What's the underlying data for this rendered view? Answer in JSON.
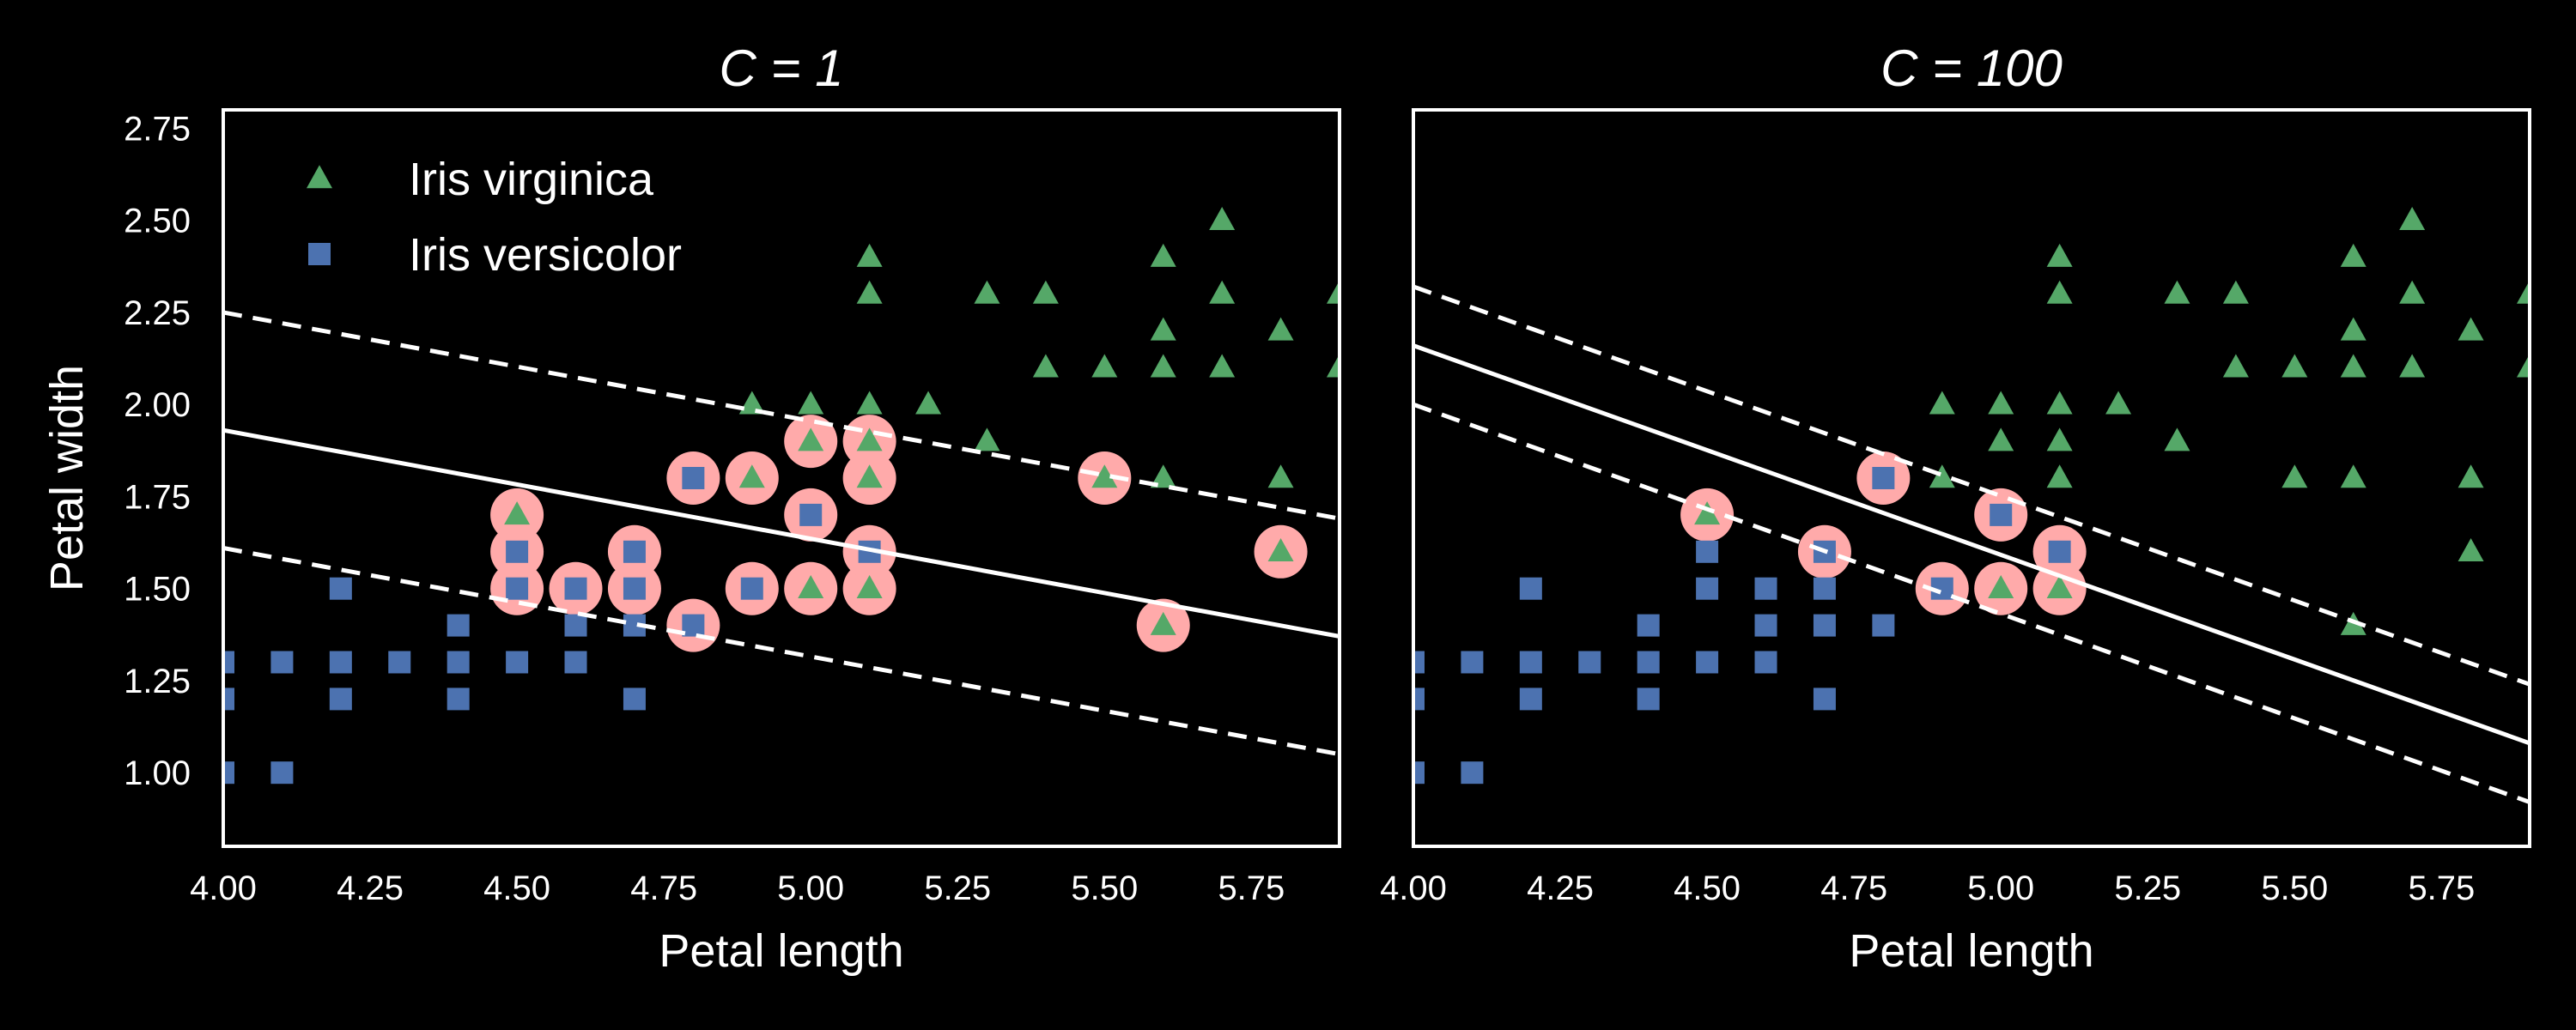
{
  "chart_data": [
    {
      "type": "scatter",
      "title": "C = 1",
      "xlabel": "Petal length",
      "ylabel": "Petal width",
      "xlim": [
        4.0,
        5.9
      ],
      "ylim": [
        0.8,
        2.8
      ],
      "xticks": [
        "4.00",
        "4.25",
        "4.50",
        "4.75",
        "5.00",
        "5.25",
        "5.50",
        "5.75"
      ],
      "yticks": [
        "1.00",
        "1.25",
        "1.50",
        "1.75",
        "2.00",
        "2.25",
        "2.50",
        "2.75"
      ],
      "legend": {
        "position": "top-left",
        "entries": [
          "Iris virginica",
          "Iris versicolor"
        ]
      },
      "grid": false,
      "series": [
        {
          "name": "Iris virginica",
          "marker": "triangle",
          "color": "#55a868",
          "points": [
            [
              4.5,
              1.7
            ],
            [
              4.9,
              1.8
            ],
            [
              4.9,
              2.0
            ],
            [
              5.0,
              1.5
            ],
            [
              5.0,
              1.9
            ],
            [
              5.0,
              2.0
            ],
            [
              5.1,
              1.5
            ],
            [
              5.1,
              1.8
            ],
            [
              5.1,
              1.9
            ],
            [
              5.1,
              2.0
            ],
            [
              5.1,
              2.3
            ],
            [
              5.1,
              2.4
            ],
            [
              5.2,
              2.0
            ],
            [
              5.3,
              1.9
            ],
            [
              5.3,
              2.3
            ],
            [
              5.4,
              2.3
            ],
            [
              5.4,
              2.1
            ],
            [
              5.5,
              1.8
            ],
            [
              5.5,
              2.1
            ],
            [
              5.6,
              1.4
            ],
            [
              5.6,
              1.8
            ],
            [
              5.6,
              2.1
            ],
            [
              5.6,
              2.2
            ],
            [
              5.6,
              2.4
            ],
            [
              5.7,
              2.1
            ],
            [
              5.7,
              2.3
            ],
            [
              5.7,
              2.5
            ],
            [
              5.8,
              1.6
            ],
            [
              5.8,
              1.8
            ],
            [
              5.8,
              2.2
            ],
            [
              5.9,
              2.1
            ],
            [
              5.9,
              2.3
            ]
          ]
        },
        {
          "name": "Iris versicolor",
          "marker": "square",
          "color": "#4c72b0",
          "points": [
            [
              4.0,
              1.0
            ],
            [
              4.0,
              1.2
            ],
            [
              4.0,
              1.3
            ],
            [
              4.1,
              1.0
            ],
            [
              4.1,
              1.3
            ],
            [
              4.2,
              1.2
            ],
            [
              4.2,
              1.3
            ],
            [
              4.2,
              1.5
            ],
            [
              4.3,
              1.3
            ],
            [
              4.4,
              1.2
            ],
            [
              4.4,
              1.3
            ],
            [
              4.4,
              1.4
            ],
            [
              4.5,
              1.3
            ],
            [
              4.5,
              1.5
            ],
            [
              4.5,
              1.6
            ],
            [
              4.6,
              1.3
            ],
            [
              4.6,
              1.4
            ],
            [
              4.6,
              1.5
            ],
            [
              4.7,
              1.2
            ],
            [
              4.7,
              1.4
            ],
            [
              4.7,
              1.5
            ],
            [
              4.7,
              1.6
            ],
            [
              4.8,
              1.4
            ],
            [
              4.8,
              1.8
            ],
            [
              4.9,
              1.5
            ],
            [
              5.0,
              1.7
            ],
            [
              5.1,
              1.6
            ]
          ]
        }
      ],
      "support_vectors": [
        [
          4.5,
          1.5
        ],
        [
          4.5,
          1.6
        ],
        [
          4.5,
          1.7
        ],
        [
          4.6,
          1.5
        ],
        [
          4.7,
          1.5
        ],
        [
          4.7,
          1.6
        ],
        [
          4.8,
          1.4
        ],
        [
          4.8,
          1.8
        ],
        [
          4.9,
          1.5
        ],
        [
          4.9,
          1.8
        ],
        [
          5.0,
          1.5
        ],
        [
          5.0,
          1.7
        ],
        [
          5.0,
          1.9
        ],
        [
          5.1,
          1.5
        ],
        [
          5.1,
          1.6
        ],
        [
          5.1,
          1.8
        ],
        [
          5.1,
          1.9
        ],
        [
          5.5,
          1.8
        ],
        [
          5.6,
          1.4
        ],
        [
          5.8,
          1.6
        ]
      ],
      "support_vector_color": "#ffaaaa",
      "decision_boundary": {
        "color": "#ffffff",
        "style": "solid",
        "points": [
          [
            4.0,
            1.93
          ],
          [
            5.9,
            1.37
          ]
        ]
      },
      "margins": [
        {
          "style": "dashed",
          "color": "#ffffff",
          "points": [
            [
              4.0,
              2.25
            ],
            [
              5.9,
              1.69
            ]
          ]
        },
        {
          "style": "dashed",
          "color": "#ffffff",
          "points": [
            [
              4.0,
              1.61
            ],
            [
              5.9,
              1.05
            ]
          ]
        }
      ]
    },
    {
      "type": "scatter",
      "title": "C = 100",
      "xlabel": "Petal length",
      "ylabel": "",
      "xlim": [
        4.0,
        5.9
      ],
      "ylim": [
        0.8,
        2.8
      ],
      "xticks": [
        "4.00",
        "4.25",
        "4.50",
        "4.75",
        "5.00",
        "5.25",
        "5.50",
        "5.75"
      ],
      "yticks": [],
      "grid": false,
      "series": [
        {
          "name": "Iris virginica",
          "marker": "triangle",
          "color": "#55a868",
          "points": [
            [
              4.5,
              1.7
            ],
            [
              4.9,
              1.8
            ],
            [
              4.9,
              2.0
            ],
            [
              5.0,
              1.5
            ],
            [
              5.0,
              1.9
            ],
            [
              5.0,
              2.0
            ],
            [
              5.1,
              1.5
            ],
            [
              5.1,
              1.8
            ],
            [
              5.1,
              1.9
            ],
            [
              5.1,
              2.0
            ],
            [
              5.1,
              2.3
            ],
            [
              5.1,
              2.4
            ],
            [
              5.2,
              2.0
            ],
            [
              5.3,
              1.9
            ],
            [
              5.3,
              2.3
            ],
            [
              5.4,
              2.3
            ],
            [
              5.4,
              2.1
            ],
            [
              5.5,
              1.8
            ],
            [
              5.5,
              2.1
            ],
            [
              5.6,
              1.4
            ],
            [
              5.6,
              1.8
            ],
            [
              5.6,
              2.1
            ],
            [
              5.6,
              2.2
            ],
            [
              5.6,
              2.4
            ],
            [
              5.7,
              2.1
            ],
            [
              5.7,
              2.3
            ],
            [
              5.7,
              2.5
            ],
            [
              5.8,
              1.6
            ],
            [
              5.8,
              1.8
            ],
            [
              5.8,
              2.2
            ],
            [
              5.9,
              2.1
            ],
            [
              5.9,
              2.3
            ]
          ]
        },
        {
          "name": "Iris versicolor",
          "marker": "square",
          "color": "#4c72b0",
          "points": [
            [
              4.0,
              1.0
            ],
            [
              4.0,
              1.2
            ],
            [
              4.0,
              1.3
            ],
            [
              4.1,
              1.0
            ],
            [
              4.1,
              1.3
            ],
            [
              4.2,
              1.2
            ],
            [
              4.2,
              1.3
            ],
            [
              4.2,
              1.5
            ],
            [
              4.3,
              1.3
            ],
            [
              4.4,
              1.2
            ],
            [
              4.4,
              1.3
            ],
            [
              4.4,
              1.4
            ],
            [
              4.5,
              1.3
            ],
            [
              4.5,
              1.5
            ],
            [
              4.5,
              1.6
            ],
            [
              4.6,
              1.3
            ],
            [
              4.6,
              1.4
            ],
            [
              4.6,
              1.5
            ],
            [
              4.7,
              1.2
            ],
            [
              4.7,
              1.4
            ],
            [
              4.7,
              1.5
            ],
            [
              4.7,
              1.6
            ],
            [
              4.8,
              1.4
            ],
            [
              4.8,
              1.8
            ],
            [
              4.9,
              1.5
            ],
            [
              5.0,
              1.7
            ],
            [
              5.1,
              1.6
            ]
          ]
        }
      ],
      "support_vectors": [
        [
          4.5,
          1.7
        ],
        [
          4.7,
          1.6
        ],
        [
          4.8,
          1.8
        ],
        [
          4.9,
          1.5
        ],
        [
          5.0,
          1.5
        ],
        [
          5.0,
          1.7
        ],
        [
          5.1,
          1.5
        ],
        [
          5.1,
          1.6
        ]
      ],
      "support_vector_color": "#ffaaaa",
      "decision_boundary": {
        "color": "#ffffff",
        "style": "solid",
        "points": [
          [
            4.0,
            2.16
          ],
          [
            5.9,
            1.08
          ]
        ]
      },
      "margins": [
        {
          "style": "dashed",
          "color": "#ffffff",
          "points": [
            [
              4.0,
              2.32
            ],
            [
              5.9,
              1.24
            ]
          ]
        },
        {
          "style": "dashed",
          "color": "#ffffff",
          "points": [
            [
              4.0,
              2.0
            ],
            [
              5.9,
              0.92
            ]
          ]
        }
      ]
    }
  ]
}
